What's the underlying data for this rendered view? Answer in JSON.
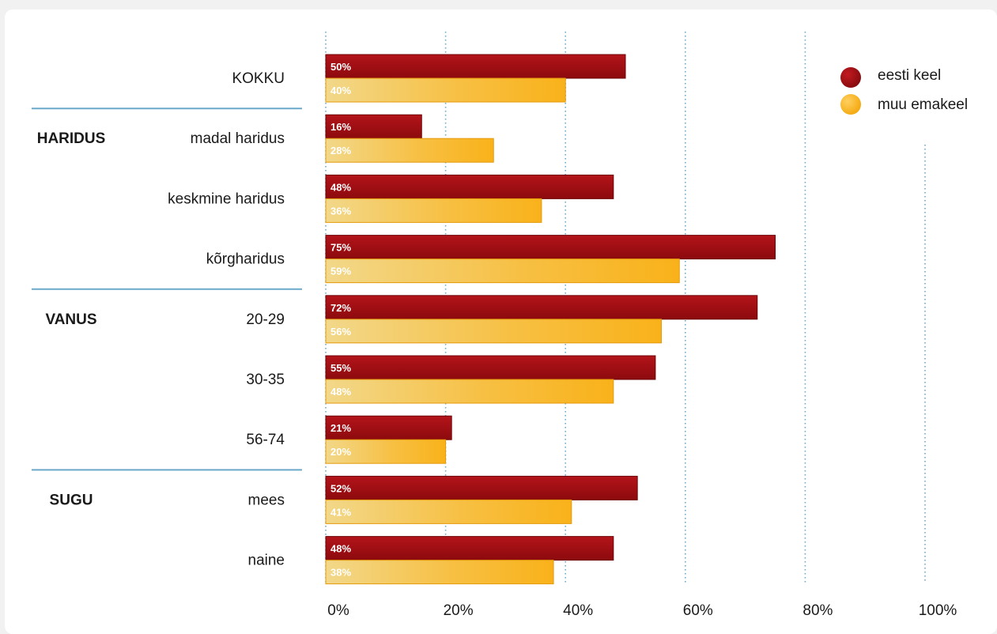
{
  "chart_data": {
    "type": "bar",
    "orientation": "horizontal",
    "xlim": [
      0,
      100
    ],
    "x_ticks": [
      "0%",
      "20%",
      "40%",
      "60%",
      "80%",
      "100%"
    ],
    "grid": "vertical dotted",
    "legend_position": "top-right",
    "groups": [
      {
        "label": "",
        "categories": [
          "KOKKU"
        ]
      },
      {
        "label": "HARIDUS",
        "categories": [
          "madal haridus",
          "keskmine haridus",
          "kõrgharidus"
        ]
      },
      {
        "label": "VANUS",
        "categories": [
          "20-29",
          "30-35",
          "56-74"
        ]
      },
      {
        "label": "SUGU",
        "categories": [
          "mees",
          "naine"
        ]
      }
    ],
    "categories": [
      "KOKKU",
      "madal haridus",
      "keskmine haridus",
      "kõrgharidus",
      "20-29",
      "30-35",
      "56-74",
      "mees",
      "naine"
    ],
    "series": [
      {
        "name": "eesti keel",
        "color": "#9b0a0f",
        "values": [
          50,
          16,
          48,
          75,
          72,
          55,
          21,
          52,
          48
        ],
        "labels": [
          "50%",
          "16%",
          "48%",
          "75%",
          "72%",
          "55%",
          "21%",
          "52%",
          "48%"
        ]
      },
      {
        "name": "muu emakeel",
        "color": "#f9b21a",
        "values": [
          40,
          28,
          36,
          59,
          56,
          48,
          20,
          41,
          38
        ],
        "labels": [
          "40%",
          "28%",
          "36%",
          "59%",
          "56%",
          "48%",
          "20%",
          "41%",
          "38%"
        ]
      }
    ]
  }
}
